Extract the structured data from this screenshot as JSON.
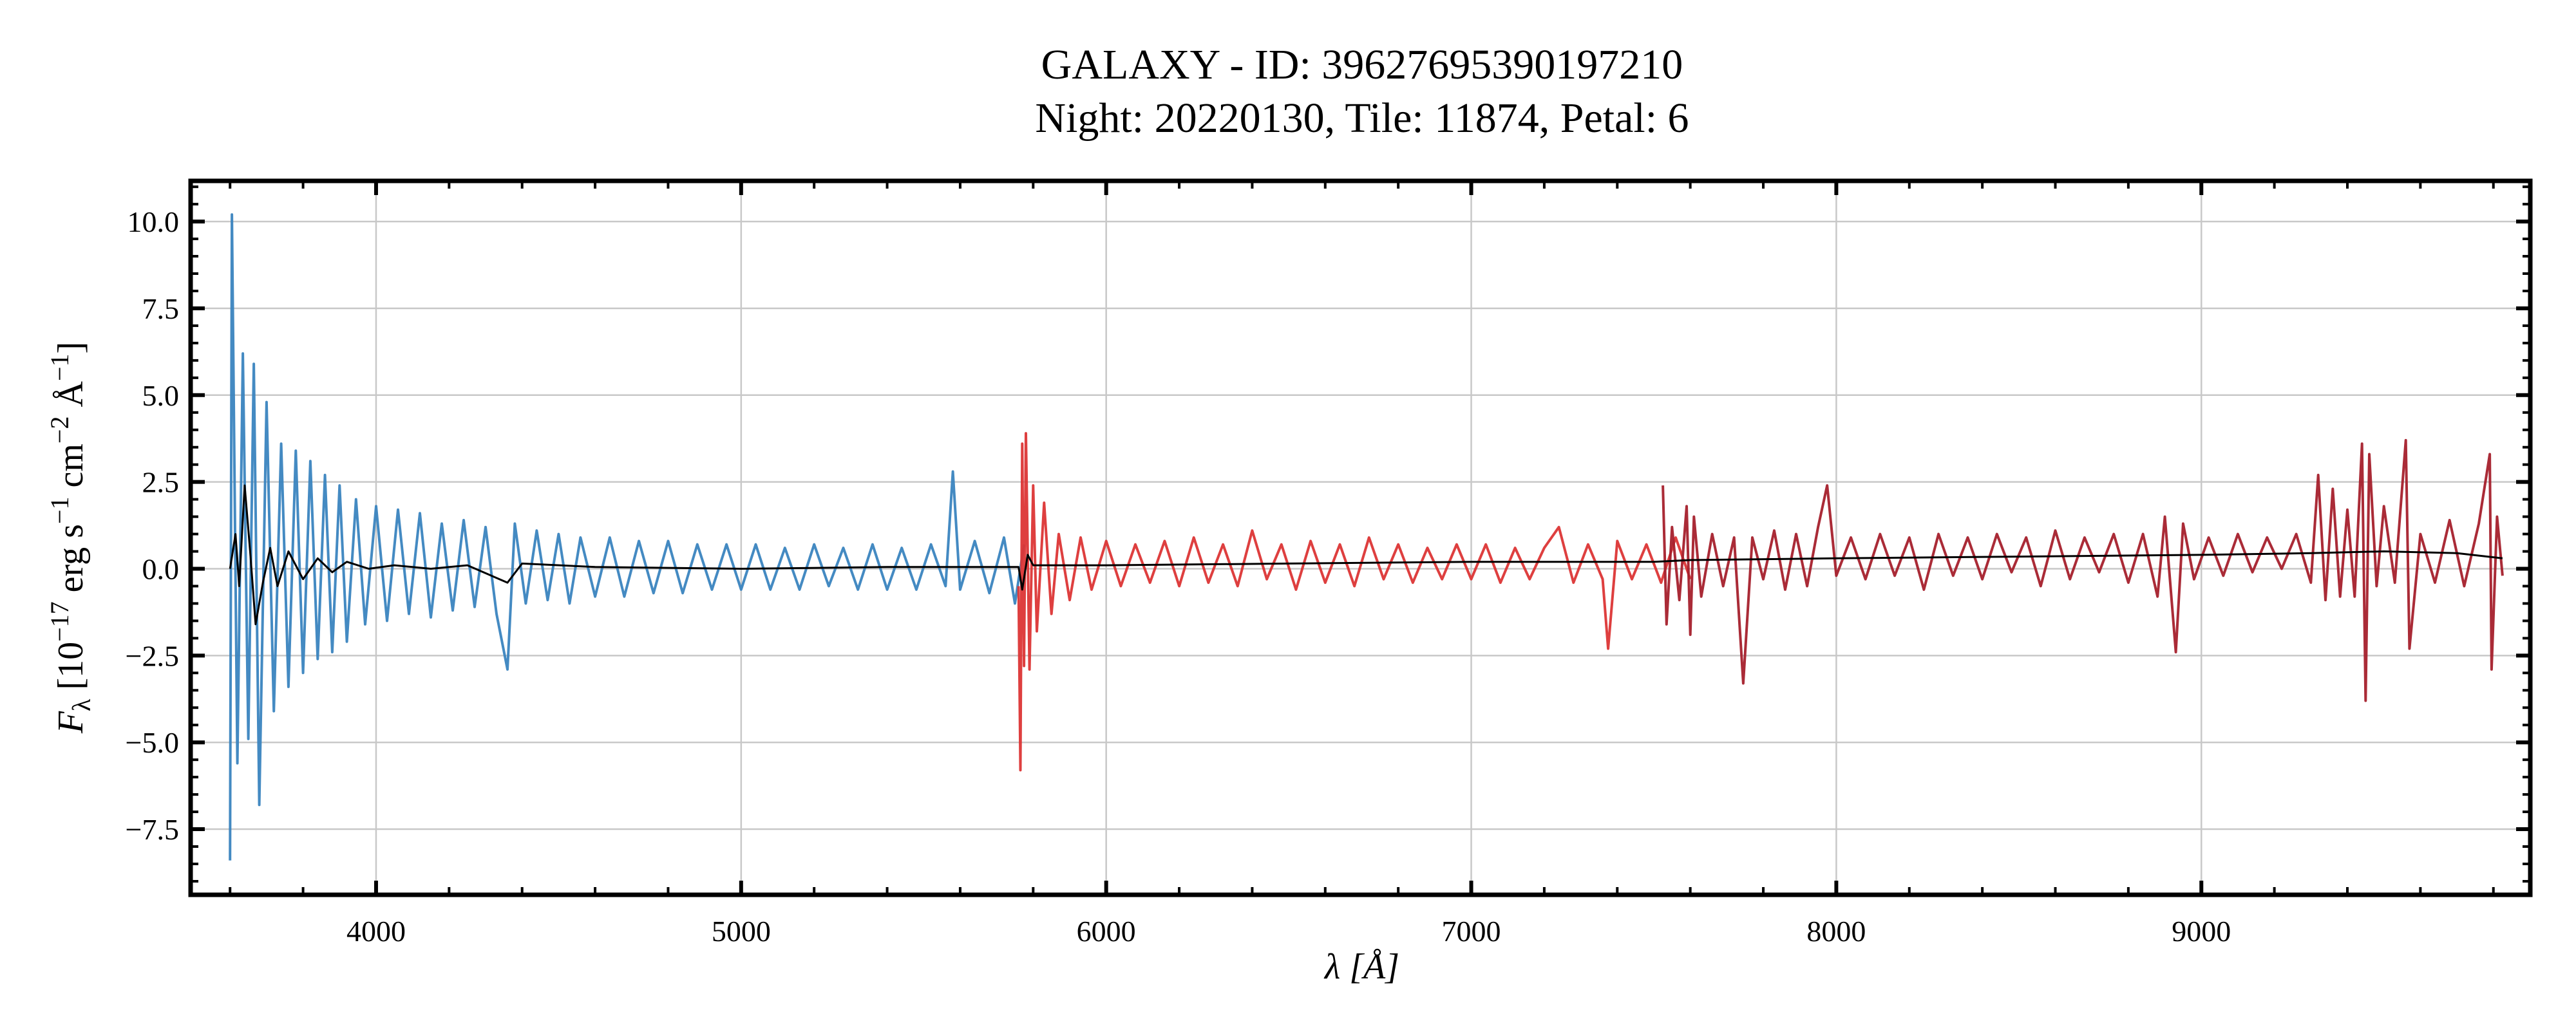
{
  "chart_data": {
    "type": "line",
    "title": "GALAXY - ID: 39627695390197210",
    "subtitle": "Night: 20220130, Tile: 11874, Petal: 6",
    "xlabel": "λ [Å]",
    "ylabel": "F_λ [10^−17 erg s^−1 cm^−2 Å^−1]",
    "ylabel_parts": {
      "main": "F",
      "sub": "λ",
      "a": " [10",
      "e1": "−17",
      "b": " erg s",
      "e2": "−1",
      "c": " cm",
      "e3": "−2",
      "d": " Å",
      "e4": "−1",
      "e": "]"
    },
    "xlim": [
      3492,
      9901
    ],
    "ylim": [
      -9.39,
      11.17
    ],
    "xticks": [
      4000,
      5000,
      6000,
      7000,
      8000,
      9000
    ],
    "xtick_labels": [
      "4000",
      "5000",
      "6000",
      "7000",
      "8000",
      "9000"
    ],
    "yticks": [
      -7.5,
      -5.0,
      -2.5,
      0.0,
      2.5,
      5.0,
      7.5,
      10.0
    ],
    "ytick_labels": [
      "−7.5",
      "−5.0",
      "−2.5",
      "0.0",
      "2.5",
      "5.0",
      "7.5",
      "10.0"
    ],
    "grid": true,
    "colors": {
      "b": "#3a84bf",
      "r": "#dc3535",
      "z": "#a5202c",
      "model": "#000000"
    },
    "series": [
      {
        "id": "b",
        "points": [
          [
            3600,
            -8.4
          ],
          [
            3605,
            10.2
          ],
          [
            3620,
            -5.6
          ],
          [
            3635,
            6.2
          ],
          [
            3650,
            -4.9
          ],
          [
            3665,
            5.9
          ],
          [
            3680,
            -6.8
          ],
          [
            3700,
            4.8
          ],
          [
            3720,
            -4.1
          ],
          [
            3740,
            3.6
          ],
          [
            3760,
            -3.4
          ],
          [
            3780,
            3.4
          ],
          [
            3800,
            -3.0
          ],
          [
            3820,
            3.1
          ],
          [
            3840,
            -2.6
          ],
          [
            3860,
            2.7
          ],
          [
            3880,
            -2.4
          ],
          [
            3900,
            2.4
          ],
          [
            3920,
            -2.1
          ],
          [
            3945,
            2.0
          ],
          [
            3970,
            -1.6
          ],
          [
            4000,
            1.8
          ],
          [
            4030,
            -1.5
          ],
          [
            4060,
            1.7
          ],
          [
            4090,
            -1.3
          ],
          [
            4120,
            1.6
          ],
          [
            4150,
            -1.4
          ],
          [
            4180,
            1.3
          ],
          [
            4210,
            -1.2
          ],
          [
            4240,
            1.4
          ],
          [
            4270,
            -1.1
          ],
          [
            4300,
            1.2
          ],
          [
            4330,
            -1.3
          ],
          [
            4360,
            -2.9
          ],
          [
            4380,
            1.3
          ],
          [
            4410,
            -1.0
          ],
          [
            4440,
            1.1
          ],
          [
            4470,
            -0.9
          ],
          [
            4500,
            1.0
          ],
          [
            4530,
            -1.0
          ],
          [
            4560,
            0.9
          ],
          [
            4600,
            -0.8
          ],
          [
            4640,
            0.9
          ],
          [
            4680,
            -0.8
          ],
          [
            4720,
            0.8
          ],
          [
            4760,
            -0.7
          ],
          [
            4800,
            0.8
          ],
          [
            4840,
            -0.7
          ],
          [
            4880,
            0.7
          ],
          [
            4920,
            -0.6
          ],
          [
            4960,
            0.7
          ],
          [
            5000,
            -0.6
          ],
          [
            5040,
            0.7
          ],
          [
            5080,
            -0.6
          ],
          [
            5120,
            0.6
          ],
          [
            5160,
            -0.6
          ],
          [
            5200,
            0.7
          ],
          [
            5240,
            -0.5
          ],
          [
            5280,
            0.6
          ],
          [
            5320,
            -0.6
          ],
          [
            5360,
            0.7
          ],
          [
            5400,
            -0.6
          ],
          [
            5440,
            0.6
          ],
          [
            5480,
            -0.6
          ],
          [
            5520,
            0.7
          ],
          [
            5560,
            -0.5
          ],
          [
            5580,
            2.8
          ],
          [
            5600,
            -0.6
          ],
          [
            5640,
            0.8
          ],
          [
            5680,
            -0.7
          ],
          [
            5720,
            0.9
          ],
          [
            5750,
            -1.0
          ],
          [
            5775,
            0.7
          ]
        ]
      },
      {
        "id": "r",
        "points": [
          [
            5760,
            -0.5
          ],
          [
            5765,
            -5.8
          ],
          [
            5770,
            3.6
          ],
          [
            5775,
            -2.8
          ],
          [
            5780,
            3.9
          ],
          [
            5790,
            -2.9
          ],
          [
            5800,
            2.4
          ],
          [
            5810,
            -1.8
          ],
          [
            5830,
            1.9
          ],
          [
            5850,
            -1.3
          ],
          [
            5870,
            1.0
          ],
          [
            5900,
            -0.9
          ],
          [
            5930,
            0.9
          ],
          [
            5960,
            -0.6
          ],
          [
            6000,
            0.8
          ],
          [
            6040,
            -0.5
          ],
          [
            6080,
            0.7
          ],
          [
            6120,
            -0.4
          ],
          [
            6160,
            0.8
          ],
          [
            6200,
            -0.5
          ],
          [
            6240,
            0.9
          ],
          [
            6280,
            -0.4
          ],
          [
            6320,
            0.7
          ],
          [
            6360,
            -0.5
          ],
          [
            6400,
            1.1
          ],
          [
            6440,
            -0.3
          ],
          [
            6480,
            0.7
          ],
          [
            6520,
            -0.6
          ],
          [
            6560,
            0.8
          ],
          [
            6600,
            -0.4
          ],
          [
            6640,
            0.7
          ],
          [
            6680,
            -0.5
          ],
          [
            6720,
            0.9
          ],
          [
            6760,
            -0.3
          ],
          [
            6800,
            0.7
          ],
          [
            6840,
            -0.4
          ],
          [
            6880,
            0.6
          ],
          [
            6920,
            -0.3
          ],
          [
            6960,
            0.7
          ],
          [
            7000,
            -0.3
          ],
          [
            7040,
            0.7
          ],
          [
            7080,
            -0.4
          ],
          [
            7120,
            0.6
          ],
          [
            7160,
            -0.3
          ],
          [
            7200,
            0.6
          ],
          [
            7240,
            1.2
          ],
          [
            7280,
            -0.4
          ],
          [
            7320,
            0.7
          ],
          [
            7360,
            -0.3
          ],
          [
            7375,
            -2.3
          ],
          [
            7400,
            0.8
          ],
          [
            7440,
            -0.3
          ],
          [
            7480,
            0.7
          ],
          [
            7520,
            -0.4
          ],
          [
            7560,
            0.9
          ],
          [
            7600,
            -0.3
          ]
        ]
      },
      {
        "id": "z",
        "points": [
          [
            7525,
            2.4
          ],
          [
            7535,
            -1.6
          ],
          [
            7550,
            1.2
          ],
          [
            7570,
            -0.9
          ],
          [
            7590,
            1.8
          ],
          [
            7600,
            -1.9
          ],
          [
            7610,
            1.5
          ],
          [
            7630,
            -0.8
          ],
          [
            7660,
            1.0
          ],
          [
            7690,
            -0.5
          ],
          [
            7720,
            0.9
          ],
          [
            7745,
            -3.3
          ],
          [
            7770,
            0.9
          ],
          [
            7800,
            -0.3
          ],
          [
            7830,
            1.1
          ],
          [
            7860,
            -0.6
          ],
          [
            7890,
            1.0
          ],
          [
            7920,
            -0.5
          ],
          [
            7950,
            1.2
          ],
          [
            7975,
            2.4
          ],
          [
            8000,
            -0.2
          ],
          [
            8040,
            0.9
          ],
          [
            8080,
            -0.3
          ],
          [
            8120,
            1.0
          ],
          [
            8160,
            -0.2
          ],
          [
            8200,
            0.9
          ],
          [
            8240,
            -0.6
          ],
          [
            8280,
            1.0
          ],
          [
            8320,
            -0.2
          ],
          [
            8360,
            0.9
          ],
          [
            8400,
            -0.3
          ],
          [
            8440,
            1.0
          ],
          [
            8480,
            -0.1
          ],
          [
            8520,
            0.9
          ],
          [
            8560,
            -0.5
          ],
          [
            8600,
            1.1
          ],
          [
            8640,
            -0.3
          ],
          [
            8680,
            0.9
          ],
          [
            8720,
            -0.1
          ],
          [
            8760,
            1.0
          ],
          [
            8800,
            -0.4
          ],
          [
            8840,
            1.0
          ],
          [
            8880,
            -0.8
          ],
          [
            8900,
            1.5
          ],
          [
            8930,
            -2.4
          ],
          [
            8950,
            1.3
          ],
          [
            8980,
            -0.3
          ],
          [
            9020,
            0.9
          ],
          [
            9060,
            -0.2
          ],
          [
            9100,
            1.0
          ],
          [
            9140,
            -0.1
          ],
          [
            9180,
            0.9
          ],
          [
            9220,
            0.0
          ],
          [
            9260,
            1.0
          ],
          [
            9300,
            -0.4
          ],
          [
            9320,
            2.7
          ],
          [
            9340,
            -0.9
          ],
          [
            9360,
            2.3
          ],
          [
            9380,
            -0.8
          ],
          [
            9400,
            1.7
          ],
          [
            9420,
            -0.8
          ],
          [
            9440,
            3.6
          ],
          [
            9450,
            -3.8
          ],
          [
            9460,
            3.3
          ],
          [
            9480,
            -0.5
          ],
          [
            9500,
            1.8
          ],
          [
            9530,
            -0.4
          ],
          [
            9560,
            3.7
          ],
          [
            9570,
            -2.3
          ],
          [
            9600,
            1.0
          ],
          [
            9640,
            -0.4
          ],
          [
            9680,
            1.4
          ],
          [
            9720,
            -0.5
          ],
          [
            9760,
            1.3
          ],
          [
            9790,
            3.3
          ],
          [
            9795,
            -2.9
          ],
          [
            9810,
            1.5
          ],
          [
            9825,
            -0.2
          ]
        ]
      },
      {
        "id": "model",
        "points": [
          [
            3600,
            0
          ],
          [
            3615,
            1.0
          ],
          [
            3625,
            -0.5
          ],
          [
            3640,
            2.4
          ],
          [
            3655,
            0.5
          ],
          [
            3670,
            -1.6
          ],
          [
            3690,
            -0.4
          ],
          [
            3710,
            0.6
          ],
          [
            3730,
            -0.5
          ],
          [
            3760,
            0.5
          ],
          [
            3800,
            -0.3
          ],
          [
            3840,
            0.3
          ],
          [
            3880,
            -0.1
          ],
          [
            3920,
            0.2
          ],
          [
            3980,
            0.0
          ],
          [
            4050,
            0.1
          ],
          [
            4150,
            0.0
          ],
          [
            4250,
            0.1
          ],
          [
            4360,
            -0.4
          ],
          [
            4400,
            0.15
          ],
          [
            4600,
            0.05
          ],
          [
            5000,
            0.0
          ],
          [
            5400,
            0.05
          ],
          [
            5760,
            0.05
          ],
          [
            5770,
            -0.6
          ],
          [
            5785,
            0.4
          ],
          [
            5800,
            0.1
          ],
          [
            6000,
            0.1
          ],
          [
            6500,
            0.15
          ],
          [
            7000,
            0.2
          ],
          [
            7500,
            0.2
          ],
          [
            7600,
            0.25
          ],
          [
            8000,
            0.3
          ],
          [
            8500,
            0.35
          ],
          [
            9000,
            0.4
          ],
          [
            9300,
            0.45
          ],
          [
            9500,
            0.5
          ],
          [
            9700,
            0.45
          ],
          [
            9825,
            0.3
          ]
        ]
      }
    ]
  }
}
